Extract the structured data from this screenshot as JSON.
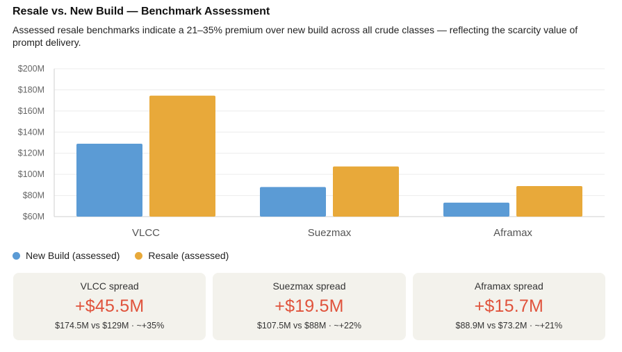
{
  "header": {
    "title": "Resale vs. New Build — Benchmark Assessment",
    "subtitle": "Assessed resale benchmarks indicate a 21–35% premium over new build across all crude classes — reflecting the scarcity value of prompt delivery."
  },
  "chart_data": {
    "type": "bar",
    "categories": [
      "VLCC",
      "Suezmax",
      "Aframax"
    ],
    "series": [
      {
        "name": "New Build (assessed)",
        "values": [
          129,
          88,
          73.2
        ],
        "color": "#5b9bd5"
      },
      {
        "name": "Resale (assessed)",
        "values": [
          174.5,
          107.5,
          88.9
        ],
        "color": "#e8a93a"
      }
    ],
    "ylim": [
      60,
      200
    ],
    "yticks": [
      200,
      180,
      160,
      140,
      120,
      100,
      80,
      60
    ],
    "ytick_labels": [
      "$200M",
      "$180M",
      "$160M",
      "$140M",
      "$120M",
      "$100M",
      "$80M",
      "$60M"
    ],
    "grid": true,
    "legend_position": "bottom-left"
  },
  "legend": {
    "items": [
      {
        "label": "New Build (assessed)",
        "color": "#5b9bd5"
      },
      {
        "label": "Resale (assessed)",
        "color": "#e8a93a"
      }
    ]
  },
  "cards": [
    {
      "label": "VLCC spread",
      "value": "+$45.5M",
      "note": "$174.5M vs $129M · ~+35%"
    },
    {
      "label": "Suezmax spread",
      "value": "+$19.5M",
      "note": "$107.5M vs $88M · ~+22%"
    },
    {
      "label": "Aframax spread",
      "value": "+$15.7M",
      "note": "$88.9M vs $73.2M · ~+21%"
    }
  ]
}
